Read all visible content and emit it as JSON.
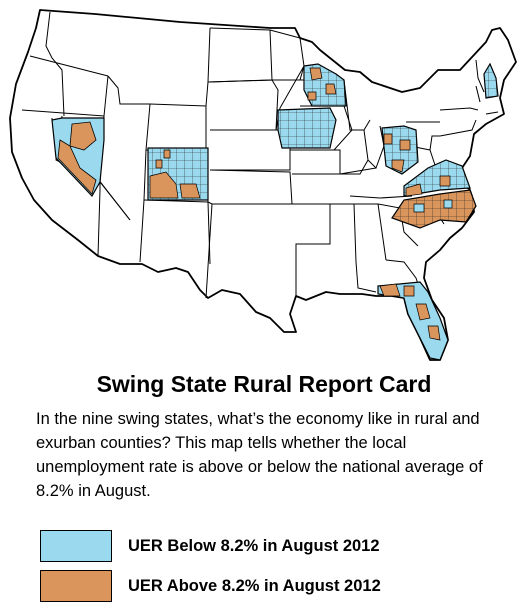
{
  "title": "Swing State Rural Report Card",
  "description": "In the nine swing states, what’s the economy like in rural and exurban counties? This map tells whether the local unemployment rate is above or below the national average of 8.2% in August.",
  "legend": [
    {
      "label": "UER Below 8.2% in August 2012",
      "color": "#9ad9ee"
    },
    {
      "label": "UER Above 8.2% in August 2012",
      "color": "#d9955c"
    }
  ],
  "colors": {
    "below": "#9ad9ee",
    "above": "#d9955c",
    "outline": "#000000",
    "land": "#ffffff"
  },
  "swing_states": [
    "Nevada",
    "Colorado",
    "Iowa",
    "Wisconsin",
    "Ohio",
    "Virginia",
    "North Carolina",
    "Florida",
    "New Hampshire"
  ]
}
